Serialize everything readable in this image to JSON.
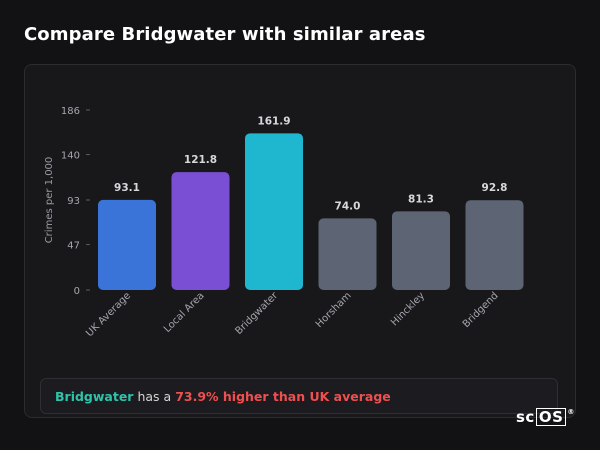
{
  "page": {
    "title": "Compare Bridgwater with similar areas"
  },
  "chart_data": {
    "type": "bar",
    "title": "",
    "xlabel": "",
    "ylabel": "Crimes per 1,000",
    "categories": [
      "UK Average",
      "Local Area",
      "Bridgwater",
      "Horsham",
      "Hinckley",
      "Bridgend"
    ],
    "values": [
      93.1,
      121.8,
      161.9,
      74.0,
      81.3,
      92.8
    ],
    "value_labels": [
      "93.1",
      "121.8",
      "161.9",
      "74.0",
      "81.3",
      "92.8"
    ],
    "colors": [
      "#3a74d8",
      "#7a4fd3",
      "#1fb6cf",
      "#5d6575",
      "#5d6575",
      "#5d6575"
    ],
    "yticks": [
      0,
      47,
      93,
      140,
      186
    ],
    "ylim": [
      0,
      186
    ],
    "grid": false,
    "legend": "none"
  },
  "summary": {
    "area": "Bridgwater",
    "connector": "has a",
    "comparison": "73.9% higher than UK average"
  },
  "brand": {
    "prefix": "sc",
    "boxed": "OS",
    "mark": "®"
  }
}
